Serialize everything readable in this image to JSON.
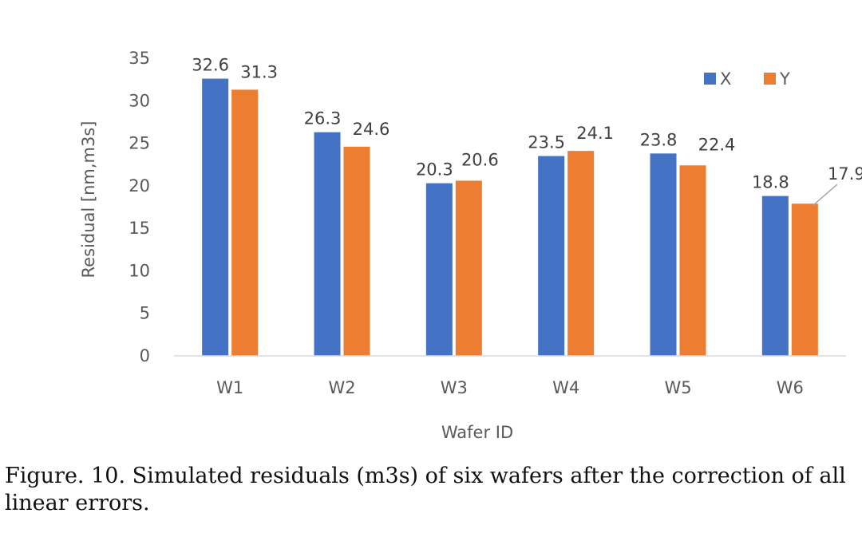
{
  "chart_data": {
    "type": "bar",
    "categories": [
      "W1",
      "W2",
      "W3",
      "W4",
      "W5",
      "W6"
    ],
    "series": [
      {
        "name": "X",
        "values": [
          32.6,
          26.3,
          20.3,
          23.5,
          23.8,
          18.8
        ],
        "color": "#4472C4"
      },
      {
        "name": "Y",
        "values": [
          31.3,
          24.6,
          20.6,
          24.1,
          22.4,
          17.9
        ],
        "color": "#ED7D31"
      }
    ],
    "xlabel": "Wafer ID",
    "ylabel": "Residual [nm,m3s]",
    "ylim": [
      0,
      35
    ],
    "yticks": [
      0,
      5,
      10,
      15,
      20,
      25,
      30,
      35
    ],
    "grid": false,
    "legend": "top-right",
    "data_labels": true
  },
  "caption": "Figure. 10. Simulated residuals (m3s) of six wafers after the correction of all linear errors."
}
